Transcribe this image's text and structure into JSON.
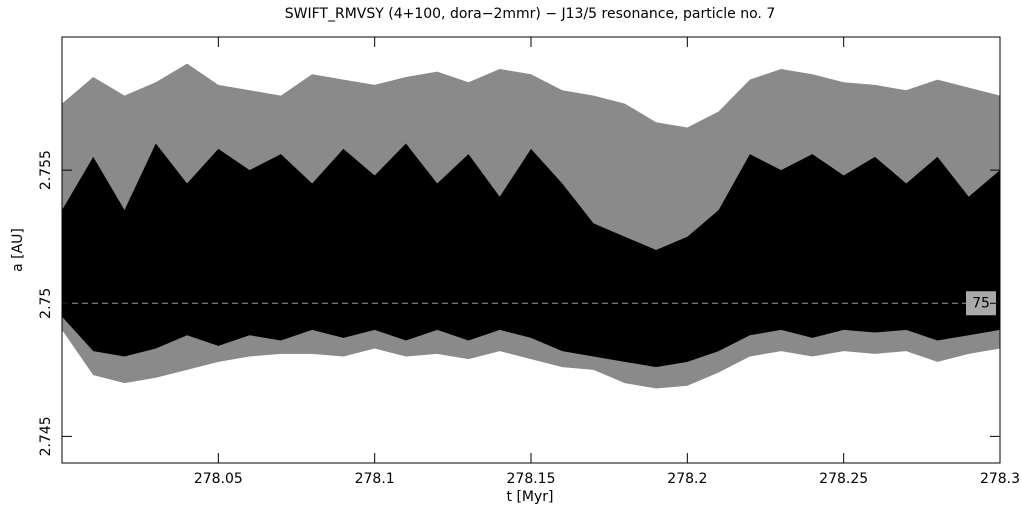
{
  "chart_data": {
    "type": "band",
    "title": "SWIFT_RMVSY (4+100, dora−2mmr) − J13/5 resonance, particle no. 7",
    "xlabel": "t [Myr]",
    "ylabel": "a [AU]",
    "xlim": [
      278.0,
      278.3
    ],
    "xticks": [
      278.05,
      278.1,
      278.15,
      278.2,
      278.25,
      278.3
    ],
    "ylim": [
      2.744,
      2.76
    ],
    "yticks": [
      2.745,
      2.75,
      2.755
    ],
    "reference_line": 2.75,
    "reference_label": "75",
    "x": [
      278.0,
      278.01,
      278.02,
      278.03,
      278.04,
      278.05,
      278.06,
      278.07,
      278.08,
      278.09,
      278.1,
      278.11,
      278.12,
      278.13,
      278.14,
      278.15,
      278.16,
      278.17,
      278.18,
      278.19,
      278.2,
      278.21,
      278.22,
      278.23,
      278.24,
      278.25,
      278.26,
      278.27,
      278.28,
      278.29,
      278.3
    ],
    "series": [
      {
        "color": "#8a8a8a",
        "high": [
          2.7575,
          2.7585,
          2.7578,
          2.7583,
          2.759,
          2.7582,
          2.758,
          2.7578,
          2.7586,
          2.7584,
          2.7582,
          2.7585,
          2.7587,
          2.7583,
          2.7588,
          2.7586,
          2.758,
          2.7578,
          2.7575,
          2.7568,
          2.7566,
          2.7572,
          2.7584,
          2.7588,
          2.7586,
          2.7583,
          2.7582,
          2.758,
          2.7584,
          2.7581,
          2.7578
        ],
        "low": [
          2.749,
          2.7473,
          2.747,
          2.7472,
          2.7475,
          2.7478,
          2.748,
          2.7481,
          2.7481,
          2.748,
          2.7483,
          2.748,
          2.7481,
          2.7479,
          2.7482,
          2.7479,
          2.7476,
          2.7475,
          2.747,
          2.7468,
          2.7469,
          2.7474,
          2.748,
          2.7482,
          2.748,
          2.7482,
          2.7481,
          2.7482,
          2.7478,
          2.7481,
          2.7483
        ]
      },
      {
        "color": "#000000",
        "high": [
          2.7535,
          2.7555,
          2.7535,
          2.756,
          2.7545,
          2.7558,
          2.755,
          2.7556,
          2.7545,
          2.7558,
          2.7548,
          2.756,
          2.7545,
          2.7556,
          2.754,
          2.7558,
          2.7545,
          2.753,
          2.7525,
          2.752,
          2.7525,
          2.7535,
          2.7556,
          2.755,
          2.7556,
          2.7548,
          2.7555,
          2.7545,
          2.7555,
          2.754,
          2.755
        ],
        "low": [
          2.7495,
          2.7482,
          2.748,
          2.7483,
          2.7488,
          2.7484,
          2.7488,
          2.7486,
          2.749,
          2.7487,
          2.749,
          2.7486,
          2.749,
          2.7486,
          2.749,
          2.7487,
          2.7482,
          2.748,
          2.7478,
          2.7476,
          2.7478,
          2.7482,
          2.7488,
          2.749,
          2.7487,
          2.749,
          2.7489,
          2.749,
          2.7486,
          2.7488,
          2.749
        ]
      }
    ]
  }
}
